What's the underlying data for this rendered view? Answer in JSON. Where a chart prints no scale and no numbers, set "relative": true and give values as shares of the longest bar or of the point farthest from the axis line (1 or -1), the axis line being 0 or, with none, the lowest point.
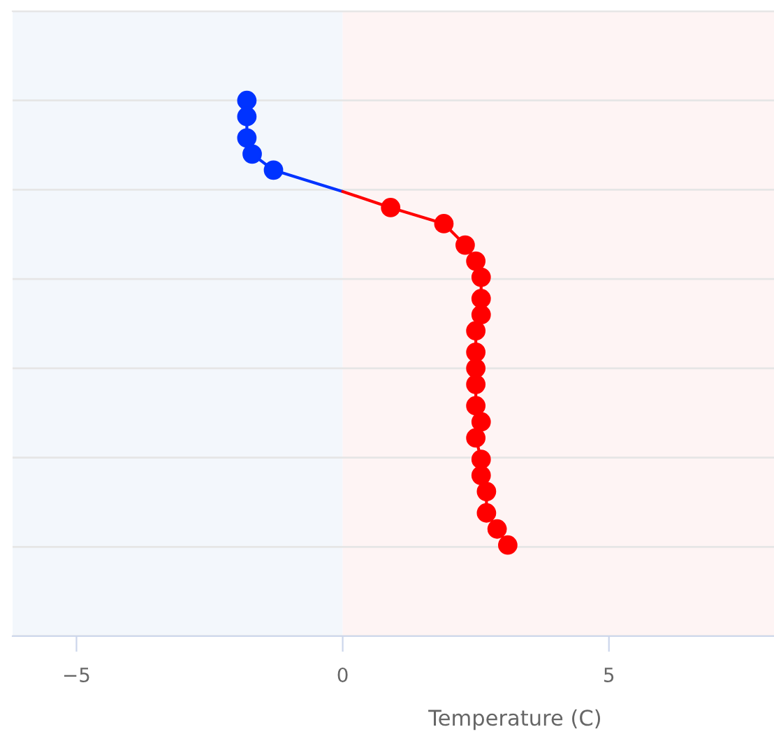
{
  "chart_data": {
    "type": "line",
    "xlabel": "Temperature (C)",
    "relative": true,
    "series": [
      {
        "color": "#0033ff",
        "x": [
          -1.8,
          -1.8,
          -1.8,
          -1.7,
          -1.3,
          0
        ],
        "values": [
          1,
          0.97,
          0.93,
          0.9,
          0.87,
          0.83
        ],
        "colors": [
          "#0033ff",
          "#0033ff",
          "#0033ff",
          "#0033ff",
          "#0033ff",
          null
        ]
      },
      {
        "color": "#ff0000",
        "x": [
          0,
          0.9,
          1.9,
          2.3,
          2.5,
          2.6,
          2.6,
          2.6,
          2.5,
          2.5,
          2.5,
          2.5,
          2.5,
          2.6,
          2.5,
          2.6,
          2.6,
          2.7,
          2.7,
          2.9,
          3.1
        ],
        "values": [
          0.83,
          0.8,
          0.77,
          0.73,
          0.7,
          0.67,
          0.63,
          0.6,
          0.57,
          0.53,
          0.5,
          0.47,
          0.43,
          0.4,
          0.37,
          0.33,
          0.3,
          0.27,
          0.23,
          0.2,
          0.17
        ],
        "colors": [
          null,
          "#ff0000",
          "#ff0000",
          "#ff0000",
          "#ff0000",
          "#ff0000",
          "#ff0000",
          "#ff0000",
          "#ff0000",
          "#ff0000",
          "#ff0000",
          "#ff0000",
          "#ff0000",
          "#ff0000",
          "#ff0000",
          "#ff0000",
          "#ff0000",
          "#ff0000",
          "#ff0000",
          "#ff0000",
          "#ff0000"
        ]
      }
    ],
    "xlim": [
      -6.2,
      8.1
    ],
    "xticks": [
      -5,
      0,
      5
    ],
    "bands": [
      {
        "axis": "x",
        "from": -6.2,
        "to": 0,
        "color": "#f3f7fc"
      },
      {
        "axis": "x",
        "from": 0,
        "to": 8.1,
        "color": "#fef4f4"
      }
    ],
    "grid": "y",
    "marker": "circle",
    "line_style": "solid",
    "tick_labels": "x",
    "legend": false
  }
}
